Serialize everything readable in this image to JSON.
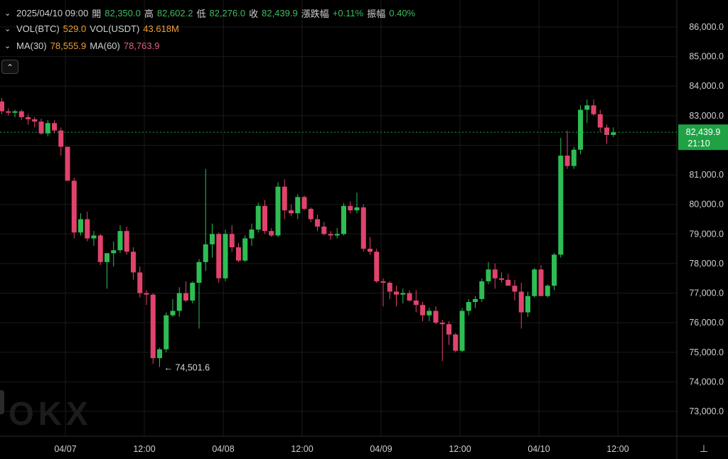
{
  "header": {
    "datetime": "2025/04/10 09:00",
    "open_label": "開",
    "open": "82,350.0",
    "high_label": "高",
    "high": "82,602.2",
    "low_label": "低",
    "low": "82,276.0",
    "close_label": "收",
    "close": "82,439.9",
    "change_label": "漲跌幅",
    "change": "+0.11%",
    "amp_label": "振幅",
    "amp": "0.40%"
  },
  "volume": {
    "btc_label": "VOL(BTC)",
    "btc": "529.0",
    "usdt_label": "VOL(USDT)",
    "usdt": "43.618M"
  },
  "ma": {
    "ma30_label": "MA(30)",
    "ma30": "78,555.9",
    "ma60_label": "MA(60)",
    "ma60": "78,763.9"
  },
  "controls": {
    "collapse_icon": "⌃",
    "axis_icon": "⊥"
  },
  "colors": {
    "up": "#2ebd53",
    "down": "#e0436c",
    "grid": "#1a1a1a",
    "price_tag": "#1fa244",
    "axis_text": "#d0d0d0"
  },
  "chart_data": {
    "type": "candlestick",
    "interval": "1h",
    "ylim": [
      72200,
      86700
    ],
    "y_ticks": [
      "73,000.0",
      "74,000.0",
      "75,000.0",
      "76,000.0",
      "77,000.0",
      "78,000.0",
      "79,000.0",
      "80,000.0",
      "81,000.0",
      "82,000.0",
      "83,000.0",
      "84,000.0",
      "85,000.0",
      "86,000.0"
    ],
    "x_ticks": [
      "04/07",
      "12:00",
      "04/08",
      "12:00",
      "04/09",
      "12:00",
      "04/10",
      "12:00"
    ],
    "last_price": "82,439.9",
    "countdown": "21:10",
    "low_annotation": "74,501.6",
    "watermark": "OKX",
    "candles": [
      {
        "o": 83480,
        "h": 83600,
        "l": 83050,
        "c": 83150
      },
      {
        "o": 83150,
        "h": 83250,
        "l": 83000,
        "c": 83100
      },
      {
        "o": 83100,
        "h": 83200,
        "l": 82950,
        "c": 83150
      },
      {
        "o": 83150,
        "h": 83200,
        "l": 82850,
        "c": 82950
      },
      {
        "o": 82950,
        "h": 83050,
        "l": 82700,
        "c": 82880
      },
      {
        "o": 82880,
        "h": 82950,
        "l": 82600,
        "c": 82800
      },
      {
        "o": 82800,
        "h": 82900,
        "l": 82350,
        "c": 82400
      },
      {
        "o": 82400,
        "h": 82850,
        "l": 82300,
        "c": 82750
      },
      {
        "o": 82750,
        "h": 82850,
        "l": 82400,
        "c": 82500
      },
      {
        "o": 82500,
        "h": 82600,
        "l": 81650,
        "c": 81950
      },
      {
        "o": 81950,
        "h": 81950,
        "l": 80850,
        "c": 80800
      },
      {
        "o": 80800,
        "h": 80900,
        "l": 78850,
        "c": 79050
      },
      {
        "o": 79050,
        "h": 79700,
        "l": 78950,
        "c": 79500
      },
      {
        "o": 79500,
        "h": 79750,
        "l": 78750,
        "c": 78850
      },
      {
        "o": 78850,
        "h": 79100,
        "l": 78600,
        "c": 78950
      },
      {
        "o": 78950,
        "h": 79000,
        "l": 77950,
        "c": 78050
      },
      {
        "o": 78050,
        "h": 78350,
        "l": 77150,
        "c": 78350
      },
      {
        "o": 78350,
        "h": 78750,
        "l": 77900,
        "c": 78450
      },
      {
        "o": 78450,
        "h": 79300,
        "l": 78350,
        "c": 79100
      },
      {
        "o": 79100,
        "h": 79250,
        "l": 78300,
        "c": 78400
      },
      {
        "o": 78400,
        "h": 78550,
        "l": 77450,
        "c": 77700
      },
      {
        "o": 77700,
        "h": 77900,
        "l": 76850,
        "c": 77000
      },
      {
        "o": 77000,
        "h": 77100,
        "l": 76600,
        "c": 76950
      },
      {
        "o": 76950,
        "h": 77000,
        "l": 74600,
        "c": 74800
      },
      {
        "o": 74800,
        "h": 75150,
        "l": 74501,
        "c": 75100
      },
      {
        "o": 75100,
        "h": 76350,
        "l": 75000,
        "c": 76250
      },
      {
        "o": 76250,
        "h": 76800,
        "l": 76200,
        "c": 76400
      },
      {
        "o": 76400,
        "h": 77200,
        "l": 76200,
        "c": 77000
      },
      {
        "o": 77000,
        "h": 77400,
        "l": 76700,
        "c": 76750
      },
      {
        "o": 76750,
        "h": 77400,
        "l": 76650,
        "c": 77350
      },
      {
        "o": 77350,
        "h": 78150,
        "l": 75800,
        "c": 78050
      },
      {
        "o": 78050,
        "h": 81200,
        "l": 77750,
        "c": 78650
      },
      {
        "o": 78650,
        "h": 79350,
        "l": 78200,
        "c": 79000
      },
      {
        "o": 79000,
        "h": 79050,
        "l": 77350,
        "c": 77500
      },
      {
        "o": 77500,
        "h": 79150,
        "l": 77400,
        "c": 79000
      },
      {
        "o": 79000,
        "h": 79300,
        "l": 78400,
        "c": 78550
      },
      {
        "o": 78550,
        "h": 78700,
        "l": 78050,
        "c": 78100
      },
      {
        "o": 78100,
        "h": 78950,
        "l": 78050,
        "c": 78850
      },
      {
        "o": 78850,
        "h": 79350,
        "l": 78600,
        "c": 79150
      },
      {
        "o": 79150,
        "h": 80050,
        "l": 79050,
        "c": 79950
      },
      {
        "o": 79950,
        "h": 80150,
        "l": 79000,
        "c": 79100
      },
      {
        "o": 79100,
        "h": 79200,
        "l": 78900,
        "c": 78950
      },
      {
        "o": 78950,
        "h": 80750,
        "l": 78900,
        "c": 80600
      },
      {
        "o": 80600,
        "h": 80850,
        "l": 79500,
        "c": 79800
      },
      {
        "o": 79800,
        "h": 80000,
        "l": 79600,
        "c": 79700
      },
      {
        "o": 79700,
        "h": 80350,
        "l": 79500,
        "c": 80250
      },
      {
        "o": 80250,
        "h": 80300,
        "l": 79800,
        "c": 79850
      },
      {
        "o": 79850,
        "h": 79900,
        "l": 79400,
        "c": 79500
      },
      {
        "o": 79500,
        "h": 79650,
        "l": 79100,
        "c": 79250
      },
      {
        "o": 79250,
        "h": 79400,
        "l": 78950,
        "c": 79000
      },
      {
        "o": 79000,
        "h": 79100,
        "l": 78800,
        "c": 78950
      },
      {
        "o": 78950,
        "h": 79200,
        "l": 78850,
        "c": 79000
      },
      {
        "o": 79000,
        "h": 80050,
        "l": 78950,
        "c": 79950
      },
      {
        "o": 79950,
        "h": 80100,
        "l": 79700,
        "c": 79800
      },
      {
        "o": 79800,
        "h": 80400,
        "l": 79700,
        "c": 79900
      },
      {
        "o": 79900,
        "h": 80000,
        "l": 78400,
        "c": 78500
      },
      {
        "o": 78500,
        "h": 78900,
        "l": 78300,
        "c": 78400
      },
      {
        "o": 78400,
        "h": 78500,
        "l": 77350,
        "c": 77400
      },
      {
        "o": 77400,
        "h": 77500,
        "l": 76550,
        "c": 77350
      },
      {
        "o": 77350,
        "h": 77400,
        "l": 76800,
        "c": 77050
      },
      {
        "o": 77050,
        "h": 77250,
        "l": 76550,
        "c": 76950
      },
      {
        "o": 76950,
        "h": 77150,
        "l": 76650,
        "c": 77000
      },
      {
        "o": 77000,
        "h": 77100,
        "l": 76700,
        "c": 76750
      },
      {
        "o": 76750,
        "h": 77100,
        "l": 76350,
        "c": 76600
      },
      {
        "o": 76600,
        "h": 76700,
        "l": 76050,
        "c": 76250
      },
      {
        "o": 76250,
        "h": 76500,
        "l": 76050,
        "c": 76400
      },
      {
        "o": 76400,
        "h": 76550,
        "l": 75950,
        "c": 76000
      },
      {
        "o": 76000,
        "h": 76100,
        "l": 74700,
        "c": 75950
      },
      {
        "o": 75950,
        "h": 76050,
        "l": 75250,
        "c": 75600
      },
      {
        "o": 75600,
        "h": 75650,
        "l": 75000,
        "c": 75050
      },
      {
        "o": 75050,
        "h": 76500,
        "l": 75000,
        "c": 76400
      },
      {
        "o": 76400,
        "h": 76800,
        "l": 76250,
        "c": 76700
      },
      {
        "o": 76700,
        "h": 76900,
        "l": 76500,
        "c": 76800
      },
      {
        "o": 76800,
        "h": 77500,
        "l": 76700,
        "c": 77400
      },
      {
        "o": 77400,
        "h": 78050,
        "l": 77300,
        "c": 77800
      },
      {
        "o": 77800,
        "h": 78000,
        "l": 77150,
        "c": 77500
      },
      {
        "o": 77500,
        "h": 77700,
        "l": 77350,
        "c": 77450
      },
      {
        "o": 77450,
        "h": 77650,
        "l": 77250,
        "c": 77250
      },
      {
        "o": 77250,
        "h": 77450,
        "l": 76750,
        "c": 77050
      },
      {
        "o": 77050,
        "h": 77350,
        "l": 75800,
        "c": 76350
      },
      {
        "o": 76350,
        "h": 77050,
        "l": 76200,
        "c": 76900
      },
      {
        "o": 76900,
        "h": 77850,
        "l": 76850,
        "c": 77800
      },
      {
        "o": 77800,
        "h": 77950,
        "l": 76900,
        "c": 76900
      },
      {
        "o": 76900,
        "h": 77300,
        "l": 76850,
        "c": 77250
      },
      {
        "o": 77250,
        "h": 78350,
        "l": 77100,
        "c": 78300
      },
      {
        "o": 78300,
        "h": 82250,
        "l": 78200,
        "c": 81650
      },
      {
        "o": 81650,
        "h": 82500,
        "l": 81200,
        "c": 81300
      },
      {
        "o": 81300,
        "h": 81950,
        "l": 81200,
        "c": 81850
      },
      {
        "o": 81850,
        "h": 83350,
        "l": 81700,
        "c": 83200
      },
      {
        "o": 83200,
        "h": 83550,
        "l": 82750,
        "c": 83350
      },
      {
        "o": 83350,
        "h": 83550,
        "l": 83000,
        "c": 83050
      },
      {
        "o": 83050,
        "h": 83200,
        "l": 82450,
        "c": 82600
      },
      {
        "o": 82600,
        "h": 82700,
        "l": 82050,
        "c": 82350
      },
      {
        "o": 82350,
        "h": 82602.2,
        "l": 82276,
        "c": 82439.9
      }
    ]
  }
}
